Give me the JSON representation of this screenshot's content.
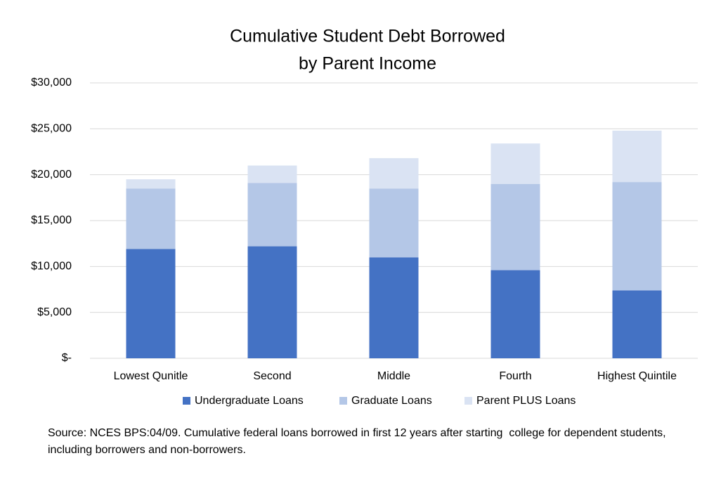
{
  "chart_data": {
    "type": "stacked-bar",
    "title": [
      "Cumulative Student Debt Borrowed",
      "by Parent Income"
    ],
    "categories": [
      "Lowest Qunitle",
      "Second",
      "Middle",
      "Fourth",
      "Highest Quintile"
    ],
    "series": [
      {
        "name": "Undergraduate Loans",
        "color": "#4472c4",
        "values": [
          11900,
          12200,
          11000,
          9600,
          7400
        ]
      },
      {
        "name": "Graduate Loans",
        "color": "#b4c7e7",
        "values": [
          6600,
          6900,
          7500,
          9400,
          11800
        ]
      },
      {
        "name": "Parent PLUS Loans",
        "color": "#dae3f3",
        "values": [
          1000,
          1900,
          3300,
          4400,
          5600
        ]
      }
    ],
    "ylim": [
      0,
      30000
    ],
    "yticks": [
      {
        "value": 0,
        "label": "$-"
      },
      {
        "value": 5000,
        "label": "$5,000"
      },
      {
        "value": 10000,
        "label": "$10,000"
      },
      {
        "value": 15000,
        "label": "$15,000"
      },
      {
        "value": 20000,
        "label": "$20,000"
      },
      {
        "value": 25000,
        "label": "$25,000"
      },
      {
        "value": 30000,
        "label": "$30,000"
      }
    ],
    "grid": true,
    "legend": "bottom",
    "source": "Source: NCES BPS:04/09. Cumulative federal loans borrowed in first 12 years after starting  college for dependent students, including borrowers and non-borrowers."
  }
}
